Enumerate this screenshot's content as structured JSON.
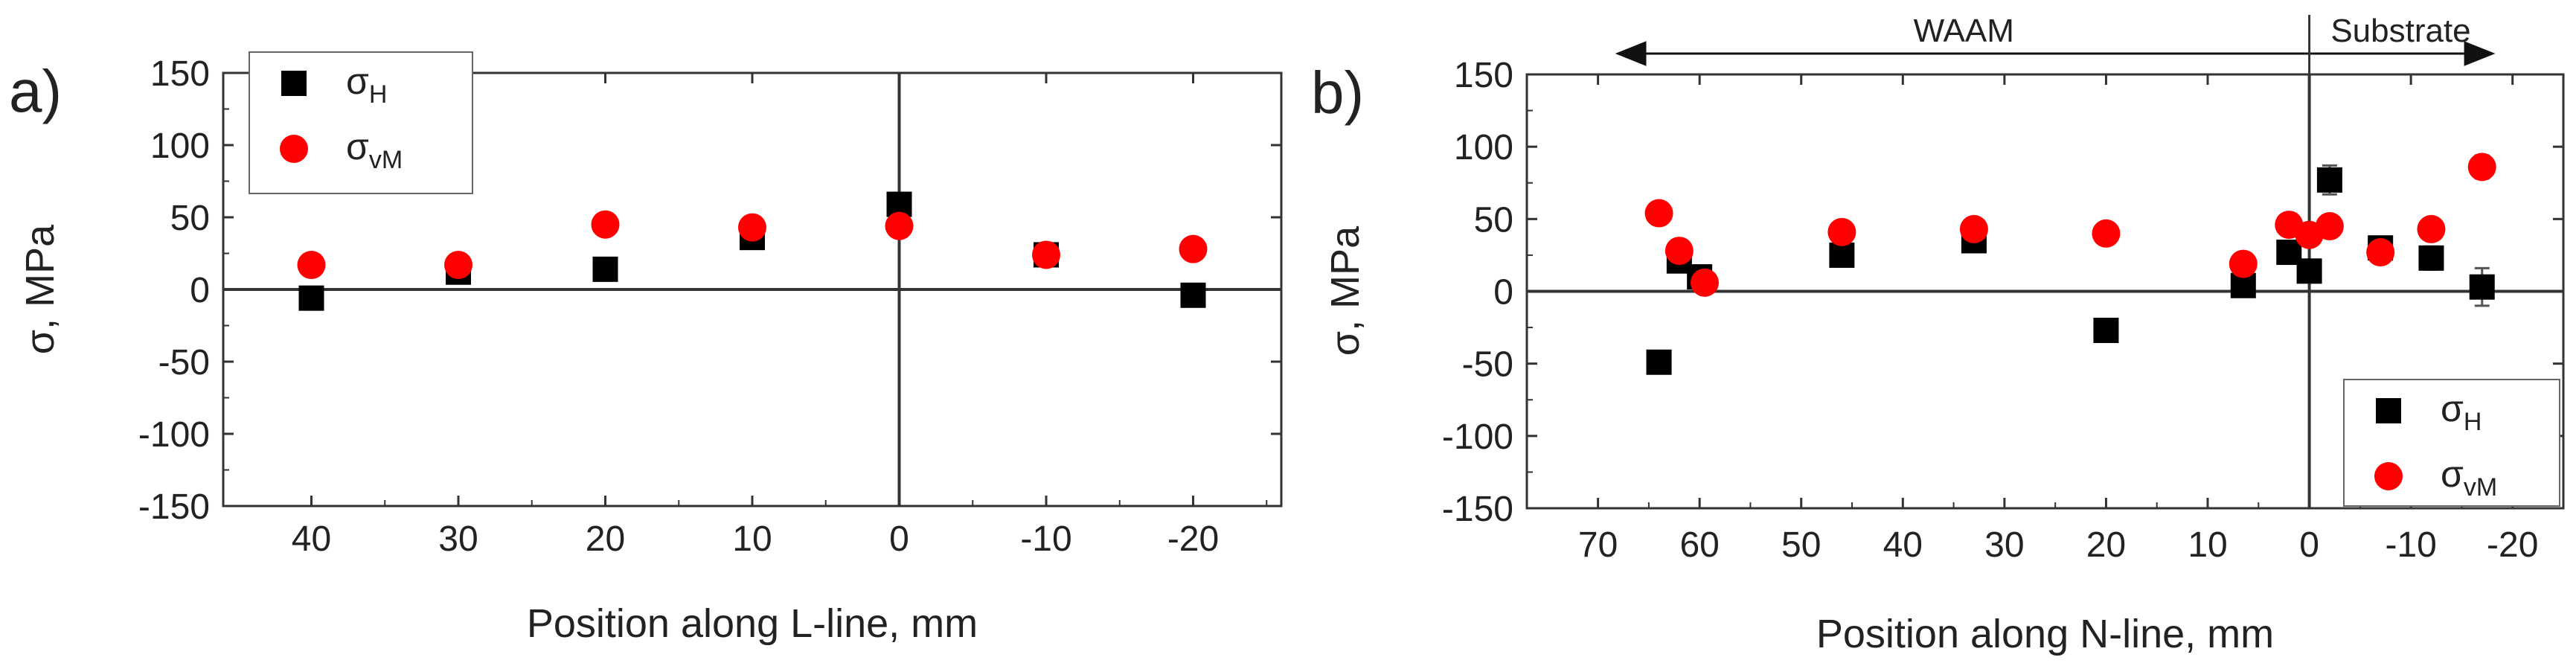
{
  "colors": {
    "sigma_H": "#000000",
    "sigma_vM": "#ff0000",
    "axis": "#333333",
    "grid": "#bbbbbb",
    "errorbar": "#555555"
  },
  "chart_data": [
    {
      "type": "scatter",
      "panel_label": "a)",
      "xlabel": "Position along L-line, mm",
      "ylabel": "σ, MPa",
      "xlim": [
        46,
        -26
      ],
      "ylim": [
        -150,
        150
      ],
      "x_ticks": [
        40,
        30,
        20,
        10,
        0,
        -10,
        -20
      ],
      "y_ticks": [
        -150,
        -100,
        -50,
        0,
        50,
        100,
        150
      ],
      "x_tick_labels": [
        "40",
        "30",
        "20",
        "10",
        "0",
        "-10",
        "-20"
      ],
      "y_tick_labels": [
        "-150",
        "-100",
        "-50",
        "0",
        "50",
        "100",
        "150"
      ],
      "grid": false,
      "legend_position": "top-left",
      "series": [
        {
          "name": "σH",
          "symbol": "σ",
          "subscript": "H",
          "marker": "square",
          "color": "#000000",
          "points": [
            {
              "x": 40,
              "y": -6
            },
            {
              "x": 30,
              "y": 12
            },
            {
              "x": 20,
              "y": 14
            },
            {
              "x": 10,
              "y": 36
            },
            {
              "x": 0,
              "y": 59
            },
            {
              "x": -10,
              "y": 24
            },
            {
              "x": -20,
              "y": -4
            }
          ]
        },
        {
          "name": "σvM",
          "symbol": "σ",
          "subscript": "vM",
          "marker": "circle",
          "color": "#ff0000",
          "points": [
            {
              "x": 40,
              "y": 17
            },
            {
              "x": 30,
              "y": 17
            },
            {
              "x": 20,
              "y": 45
            },
            {
              "x": 10,
              "y": 43
            },
            {
              "x": 0,
              "y": 44
            },
            {
              "x": -10,
              "y": 24
            },
            {
              "x": -20,
              "y": 28
            }
          ]
        }
      ]
    },
    {
      "type": "scatter",
      "panel_label": "b)",
      "xlabel": "Position along N-line, mm",
      "ylabel": "σ, MPa",
      "xlim": [
        77,
        -25
      ],
      "ylim": [
        -150,
        150
      ],
      "x_ticks": [
        70,
        60,
        50,
        40,
        30,
        20,
        10,
        0,
        -10,
        -20
      ],
      "y_ticks": [
        -150,
        -100,
        -50,
        0,
        50,
        100,
        150
      ],
      "x_tick_labels": [
        "70",
        "60",
        "50",
        "40",
        "30",
        "20",
        "10",
        "0",
        "-10",
        "-20"
      ],
      "y_tick_labels": [
        "-150",
        "-100",
        "-50",
        "0",
        "50",
        "100",
        "150"
      ],
      "grid": false,
      "legend_position": "bottom-right",
      "region_annotations": [
        {
          "label": "WAAM",
          "from_x": 68,
          "to_x": 0
        },
        {
          "label": "Substrate",
          "from_x": 0,
          "to_x": -18
        }
      ],
      "series": [
        {
          "name": "σH",
          "symbol": "σ",
          "subscript": "H",
          "marker": "square",
          "color": "#000000",
          "points": [
            {
              "x": 64,
              "y": -49
            },
            {
              "x": 62,
              "y": 21
            },
            {
              "x": 60,
              "y": 10
            },
            {
              "x": 46,
              "y": 25
            },
            {
              "x": 33,
              "y": 35
            },
            {
              "x": 20,
              "y": -27
            },
            {
              "x": 6.5,
              "y": 4
            },
            {
              "x": 2,
              "y": 27
            },
            {
              "x": 0,
              "y": 14
            },
            {
              "x": -2,
              "y": 77,
              "err": 10
            },
            {
              "x": -7,
              "y": 30,
              "err": 6
            },
            {
              "x": -12,
              "y": 23,
              "err": 8
            },
            {
              "x": -17,
              "y": 3,
              "err": 13
            }
          ]
        },
        {
          "name": "σvM",
          "symbol": "σ",
          "subscript": "vM",
          "marker": "circle",
          "color": "#ff0000",
          "points": [
            {
              "x": 64,
              "y": 54
            },
            {
              "x": 62,
              "y": 28
            },
            {
              "x": 59.5,
              "y": 6
            },
            {
              "x": 46,
              "y": 41
            },
            {
              "x": 33,
              "y": 43
            },
            {
              "x": 20,
              "y": 40
            },
            {
              "x": 6.5,
              "y": 19
            },
            {
              "x": 2,
              "y": 46
            },
            {
              "x": 0,
              "y": 39
            },
            {
              "x": -2,
              "y": 45
            },
            {
              "x": -7,
              "y": 27
            },
            {
              "x": -12,
              "y": 43
            },
            {
              "x": -17,
              "y": 86,
              "err": 8
            }
          ]
        }
      ]
    }
  ]
}
